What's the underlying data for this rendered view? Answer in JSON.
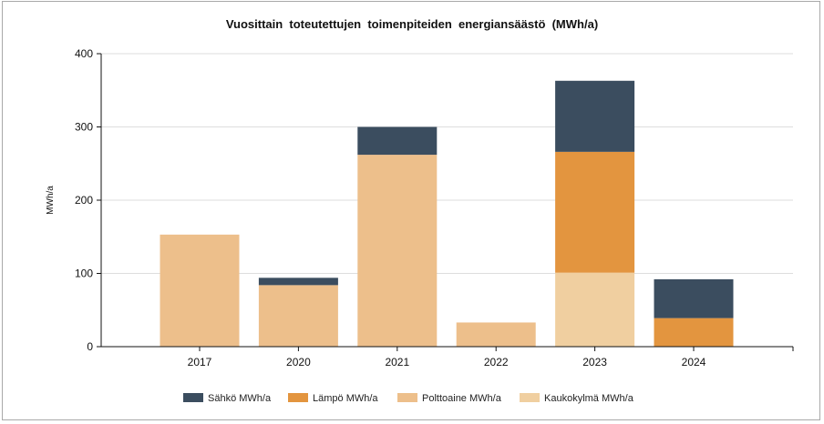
{
  "chart_data": {
    "type": "bar",
    "stacked": true,
    "title": "Vuosittain  toteutettujen  toimenpiteiden  energiansäästö  (MWh/a)",
    "xlabel": "",
    "ylabel": "MWh/a",
    "ylim": [
      0,
      400
    ],
    "yticks": [
      "0",
      "100",
      "200",
      "300",
      "400"
    ],
    "grid": true,
    "legend_position": "bottom",
    "categories": [
      "2017",
      "2020",
      "2021",
      "2022",
      "2023",
      "2024"
    ],
    "series": [
      {
        "name": "Kaukokylmä MWh/a",
        "color": "#f0cfa0",
        "values": [
          0,
          0,
          0,
          0,
          101,
          0
        ]
      },
      {
        "name": "Polttoaine MWh/a",
        "color": "#edbf8b",
        "values": [
          153,
          84,
          262,
          33,
          0,
          0
        ]
      },
      {
        "name": "Lämpö MWh/a",
        "color": "#e3953f",
        "values": [
          0,
          0,
          0,
          0,
          165,
          39
        ]
      },
      {
        "name": "Sähkö MWh/a",
        "color": "#3b4d5f",
        "values": [
          0,
          10,
          38,
          0,
          97,
          53
        ]
      }
    ],
    "legend_order": [
      "Sähkö MWh/a",
      "Lämpö MWh/a",
      "Polttoaine MWh/a",
      "Kaukokylmä MWh/a"
    ]
  }
}
